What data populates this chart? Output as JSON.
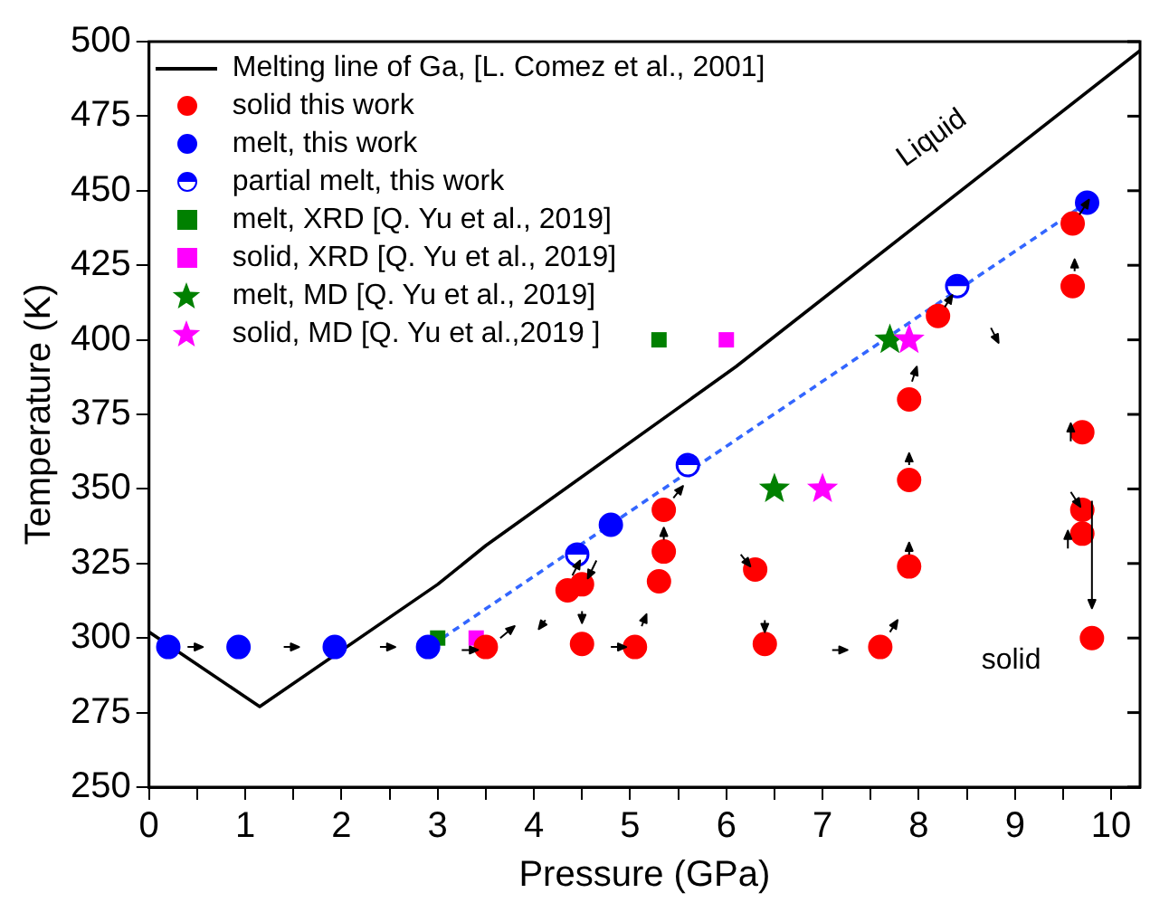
{
  "chart_data": {
    "type": "scatter",
    "xlabel": "Pressure (GPa)",
    "ylabel": "Temperature (K)",
    "xlim": [
      0,
      10.3
    ],
    "ylim": [
      250,
      500
    ],
    "xticks": [
      0,
      {
        "value": 0.5,
        "label": null
      },
      1,
      {
        "value": 1.5,
        "label": null
      },
      2,
      {
        "value": 2.5,
        "label": null
      },
      3,
      {
        "value": 3.5,
        "label": null
      },
      4,
      {
        "value": 4.5,
        "label": null
      },
      5,
      {
        "value": 5.5,
        "label": null
      },
      6,
      {
        "value": 6.5,
        "label": null
      },
      7,
      {
        "value": 7.5,
        "label": null
      },
      8,
      {
        "value": 8.5,
        "label": null
      },
      9,
      {
        "value": 9.5,
        "label": null
      },
      10
    ],
    "yticks": [
      250,
      275,
      300,
      325,
      350,
      375,
      400,
      425,
      450,
      475,
      500
    ],
    "grid": false,
    "legend": "top left",
    "series": [
      {
        "name": "Melting line of Ga, [L. Comez et al., 2001]",
        "type": "line",
        "marker": "none",
        "line_style": "solid",
        "color": "#000000",
        "x": [
          0,
          1.15,
          3,
          3.5,
          6.1,
          10.3
        ],
        "values": [
          302,
          277,
          318,
          331,
          391,
          497
        ]
      },
      {
        "name": "solid this work",
        "marker": "circle",
        "color": "#ff0000",
        "x": [
          3.5,
          4.35,
          4.5,
          4.5,
          5.05,
          5.3,
          5.35,
          5.35,
          6.3,
          6.4,
          7.6,
          7.9,
          7.9,
          7.9,
          8.2,
          9.6,
          9.6,
          9.7,
          9.7,
          9.7,
          9.8
        ],
        "values": [
          297,
          316,
          318,
          298,
          297,
          319,
          329,
          343,
          323,
          298,
          297,
          324,
          353,
          380,
          408,
          418,
          439,
          369,
          343,
          335,
          300
        ]
      },
      {
        "name": "melt, this work",
        "marker": "circle",
        "color": "#0000ff",
        "x": [
          0.2,
          0.93,
          1.93,
          2.9,
          4.8,
          9.75
        ],
        "values": [
          297,
          297,
          297,
          297,
          338,
          446
        ]
      },
      {
        "name": "partial melt, this work",
        "marker": "circle",
        "color": "#0000ff",
        "x": [
          4.45,
          5.6,
          8.4
        ],
        "values": [
          328,
          358,
          418
        ]
      },
      {
        "name": "melt, XRD [Q. Yu et al., 2019]",
        "marker": "square",
        "color": "#008000",
        "x": [
          3,
          5.3
        ],
        "values": [
          300,
          400
        ]
      },
      {
        "name": "solid, XRD [Q. Yu et al., 2019]",
        "marker": "square",
        "color": "#ff00ff",
        "x": [
          3.4,
          6
        ],
        "values": [
          300,
          400
        ]
      },
      {
        "name": "melt, MD [Q. Yu et al., 2019]",
        "marker": "star",
        "color": "#008000",
        "x": [
          6.5,
          7.7
        ],
        "values": [
          350,
          400
        ]
      },
      {
        "name": "solid, MD [Q. Yu et al.,2019 ]",
        "marker": "star",
        "color": "#ff00ff",
        "x": [
          7,
          7.9
        ],
        "values": [
          350,
          400
        ]
      },
      {
        "type": "line",
        "marker": "none",
        "line_style": "dashed",
        "color": "#3366ff",
        "x": [
          3.05,
          9.75
        ],
        "values": [
          300,
          446
        ]
      }
    ],
    "annotations": [
      "Liquid",
      "solid"
    ]
  }
}
